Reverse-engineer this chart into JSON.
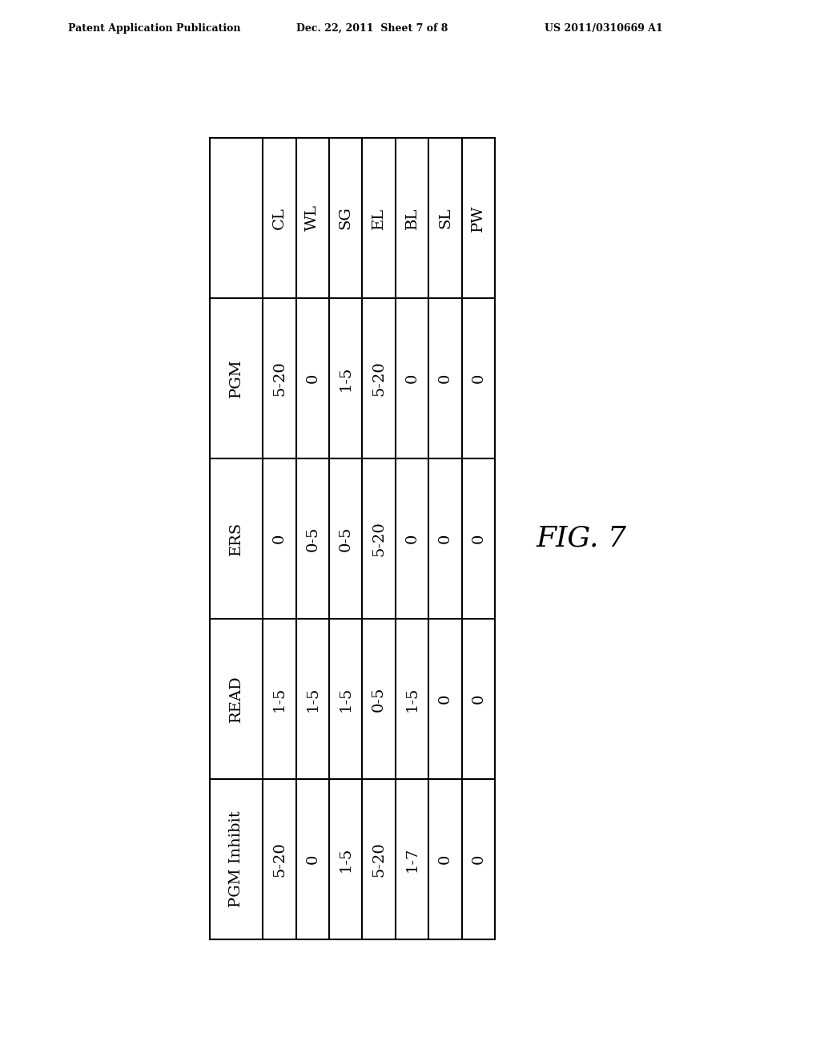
{
  "col_headers": [
    "CL",
    "WL",
    "SG",
    "EL",
    "BL",
    "SL",
    "PW"
  ],
  "row_labels": [
    "PGM",
    "ERS",
    "READ",
    "PGM Inhibit"
  ],
  "table_data": [
    [
      "5-20",
      "0",
      "1-5",
      "5-20",
      "0",
      "0",
      "0"
    ],
    [
      "0",
      "0-5",
      "0-5",
      "5-20",
      "0",
      "0",
      "0"
    ],
    [
      "1-5",
      "1-5",
      "1-5",
      "0-5",
      "1-5",
      "0",
      "0"
    ],
    [
      "5-20",
      "0",
      "1-5",
      "5-20",
      "1-7",
      "0",
      "0"
    ]
  ],
  "fig_label": "FIG. 7",
  "patent_header_left": "Patent Application Publication",
  "patent_header_mid": "Dec. 22, 2011  Sheet 7 of 8",
  "patent_header_right": "US 2011/0310669 A1",
  "background_color": "#ffffff",
  "line_color": "#000000",
  "text_color": "#000000",
  "cell_font_size": 14,
  "header_font_size": 14,
  "row_label_font_size": 14,
  "fig_label_font_size": 26,
  "patent_font_size": 9
}
